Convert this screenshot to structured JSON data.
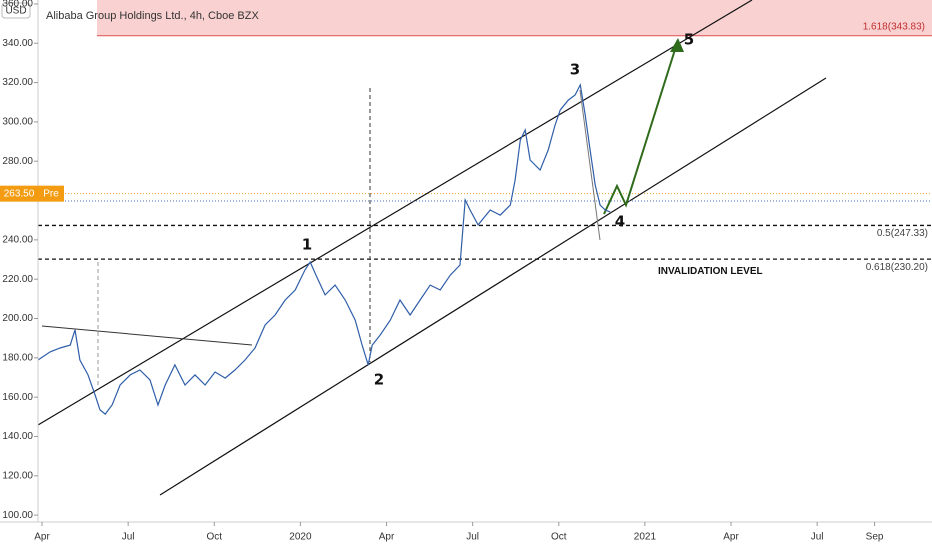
{
  "chart_data": {
    "type": "line",
    "title": "Alibaba Group Holdings Ltd., 4h, Cboe BZX",
    "currency": "USD",
    "color": "#2f5ea8",
    "x": [
      -0.14,
      0.28,
      0.63,
      0.98,
      1.15,
      1.32,
      1.6,
      1.85,
      2.02,
      2.2,
      2.44,
      2.72,
      3.07,
      3.41,
      3.76,
      4.04,
      4.29,
      4.63,
      4.98,
      5.33,
      5.68,
      6.03,
      6.38,
      6.72,
      7.07,
      7.42,
      7.77,
      8.12,
      8.47,
      8.82,
      9.16,
      9.34,
      9.62,
      9.86,
      10.21,
      10.56,
      10.91,
      11.15,
      11.36,
      11.5,
      11.78,
      12.13,
      12.47,
      12.82,
      13.17,
      13.52,
      13.87,
      14.22,
      14.56,
      14.74,
      14.91,
      15.19,
      15.61,
      15.96,
      16.31,
      16.48,
      16.66,
      16.83,
      17.0,
      17.35,
      17.63,
      17.87,
      18.05,
      18.33,
      18.57,
      18.75,
      18.92,
      19.09,
      19.27,
      19.44,
      19.62,
      19.79
    ],
    "values": [
      178.9,
      183.0,
      185.0,
      186.5,
      194.2,
      178.9,
      171.3,
      161.1,
      153.5,
      151.4,
      156.0,
      166.2,
      171.3,
      173.8,
      168.7,
      156.0,
      166.2,
      176.4,
      166.2,
      171.3,
      166.2,
      172.8,
      169.7,
      173.8,
      178.9,
      185.0,
      196.7,
      201.8,
      209.4,
      214.5,
      224.7,
      228.7,
      219.6,
      212.0,
      217.0,
      209.4,
      199.2,
      186.5,
      176.4,
      186.5,
      191.6,
      199.2,
      209.4,
      201.8,
      209.4,
      217.0,
      214.5,
      222.1,
      227.2,
      260.3,
      255.2,
      247.6,
      255.2,
      252.6,
      257.7,
      270.4,
      290.8,
      295.9,
      280.6,
      275.5,
      285.7,
      298.4,
      306.0,
      311.1,
      313.7,
      318.8,
      303.5,
      285.7,
      267.9,
      257.7,
      255.2,
      254.2
    ],
    "xlim": [
      -0.14,
      31.0
    ],
    "xticks": [
      {
        "value": 0,
        "label": "Apr"
      },
      {
        "value": 3,
        "label": "Jul"
      },
      {
        "value": 6,
        "label": "Oct"
      },
      {
        "value": 9,
        "label": "2020"
      },
      {
        "value": 12,
        "label": "Apr"
      },
      {
        "value": 15,
        "label": "Jul"
      },
      {
        "value": 18,
        "label": "Oct"
      },
      {
        "value": 21,
        "label": "2021"
      },
      {
        "value": 24,
        "label": "Apr"
      },
      {
        "value": 27,
        "label": "Jul"
      },
      {
        "value": 29,
        "label": "Sep"
      }
    ],
    "ylim": [
      96.5,
      362
    ],
    "yticks": [
      {
        "value": 100,
        "label": "100.00"
      },
      {
        "value": 120,
        "label": "120.00"
      },
      {
        "value": 140,
        "label": "140.00"
      },
      {
        "value": 160,
        "label": "160.00"
      },
      {
        "value": 180,
        "label": "180.00"
      },
      {
        "value": 200,
        "label": "200.00"
      },
      {
        "value": 220,
        "label": "220.00"
      },
      {
        "value": 240,
        "label": "240.00"
      },
      {
        "value": 280,
        "label": "280.00"
      },
      {
        "value": 300,
        "label": "300.00"
      },
      {
        "value": 320,
        "label": "320.00"
      },
      {
        "value": 340,
        "label": "340.00"
      },
      {
        "value": 360,
        "label": "360.00"
      }
    ],
    "last_price": {
      "value": 263.5,
      "label": "263.50"
    },
    "session": "Pre",
    "target": {
      "value": 343.83,
      "label": "1.618(343.83)"
    },
    "fib_levels": [
      {
        "value": 247.33,
        "label": "0.5(247.33)"
      },
      {
        "value": 230.2,
        "label": "0.618(230.20)"
      }
    ],
    "invalidation": "INVALIDATION LEVEL",
    "wave_labels": [
      "1",
      "2",
      "3",
      "4",
      "5"
    ]
  }
}
